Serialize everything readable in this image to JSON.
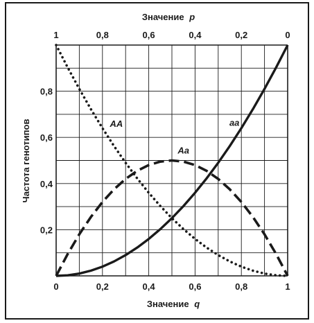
{
  "chart_data": {
    "type": "line",
    "x_axis": {
      "label": "Значение",
      "var": "q",
      "range": [
        0,
        1
      ],
      "ticks": [
        0,
        0.2,
        0.4,
        0.6,
        0.8,
        1
      ],
      "tick_labels": [
        "0",
        "0,2",
        "0,4",
        "0,6",
        "0,8",
        "1"
      ]
    },
    "top_axis": {
      "label": "Значение",
      "var": "p",
      "range": [
        1,
        0
      ],
      "ticks": [
        1,
        0.8,
        0.6,
        0.4,
        0.2,
        0
      ],
      "tick_labels": [
        "1",
        "0,8",
        "0,6",
        "0,4",
        "0,2",
        "0"
      ]
    },
    "y_axis": {
      "label": "Частота генотипов",
      "range": [
        0,
        1
      ],
      "ticks": [
        0.2,
        0.4,
        0.6,
        0.8
      ],
      "tick_labels": [
        "0,2",
        "0,4",
        "0,6",
        "0,8"
      ]
    },
    "grid": true,
    "x": [
      0,
      0.05,
      0.1,
      0.15,
      0.2,
      0.25,
      0.3,
      0.35,
      0.4,
      0.45,
      0.5,
      0.55,
      0.6,
      0.65,
      0.7,
      0.75,
      0.8,
      0.85,
      0.9,
      0.95,
      1
    ],
    "series": [
      {
        "name": "AA",
        "style": "dotted",
        "values": [
          1,
          0.9025,
          0.81,
          0.7225,
          0.64,
          0.5625,
          0.49,
          0.4225,
          0.36,
          0.3025,
          0.25,
          0.2025,
          0.16,
          0.1225,
          0.09,
          0.0625,
          0.04,
          0.0225,
          0.01,
          0.0025,
          0
        ]
      },
      {
        "name": "Aa",
        "style": "dashed",
        "values": [
          0,
          0.095,
          0.18,
          0.255,
          0.32,
          0.375,
          0.42,
          0.455,
          0.48,
          0.495,
          0.5,
          0.495,
          0.48,
          0.455,
          0.42,
          0.375,
          0.32,
          0.255,
          0.18,
          0.095,
          0
        ]
      },
      {
        "name": "aa",
        "style": "solid",
        "values": [
          0,
          0.0025,
          0.01,
          0.0225,
          0.04,
          0.0625,
          0.09,
          0.1225,
          0.16,
          0.2025,
          0.25,
          0.3025,
          0.36,
          0.4225,
          0.49,
          0.5625,
          0.64,
          0.7225,
          0.81,
          0.9025,
          1
        ]
      }
    ],
    "colors": {
      "ink": "#1a1a1a",
      "grid": "#1a1a1a"
    }
  }
}
